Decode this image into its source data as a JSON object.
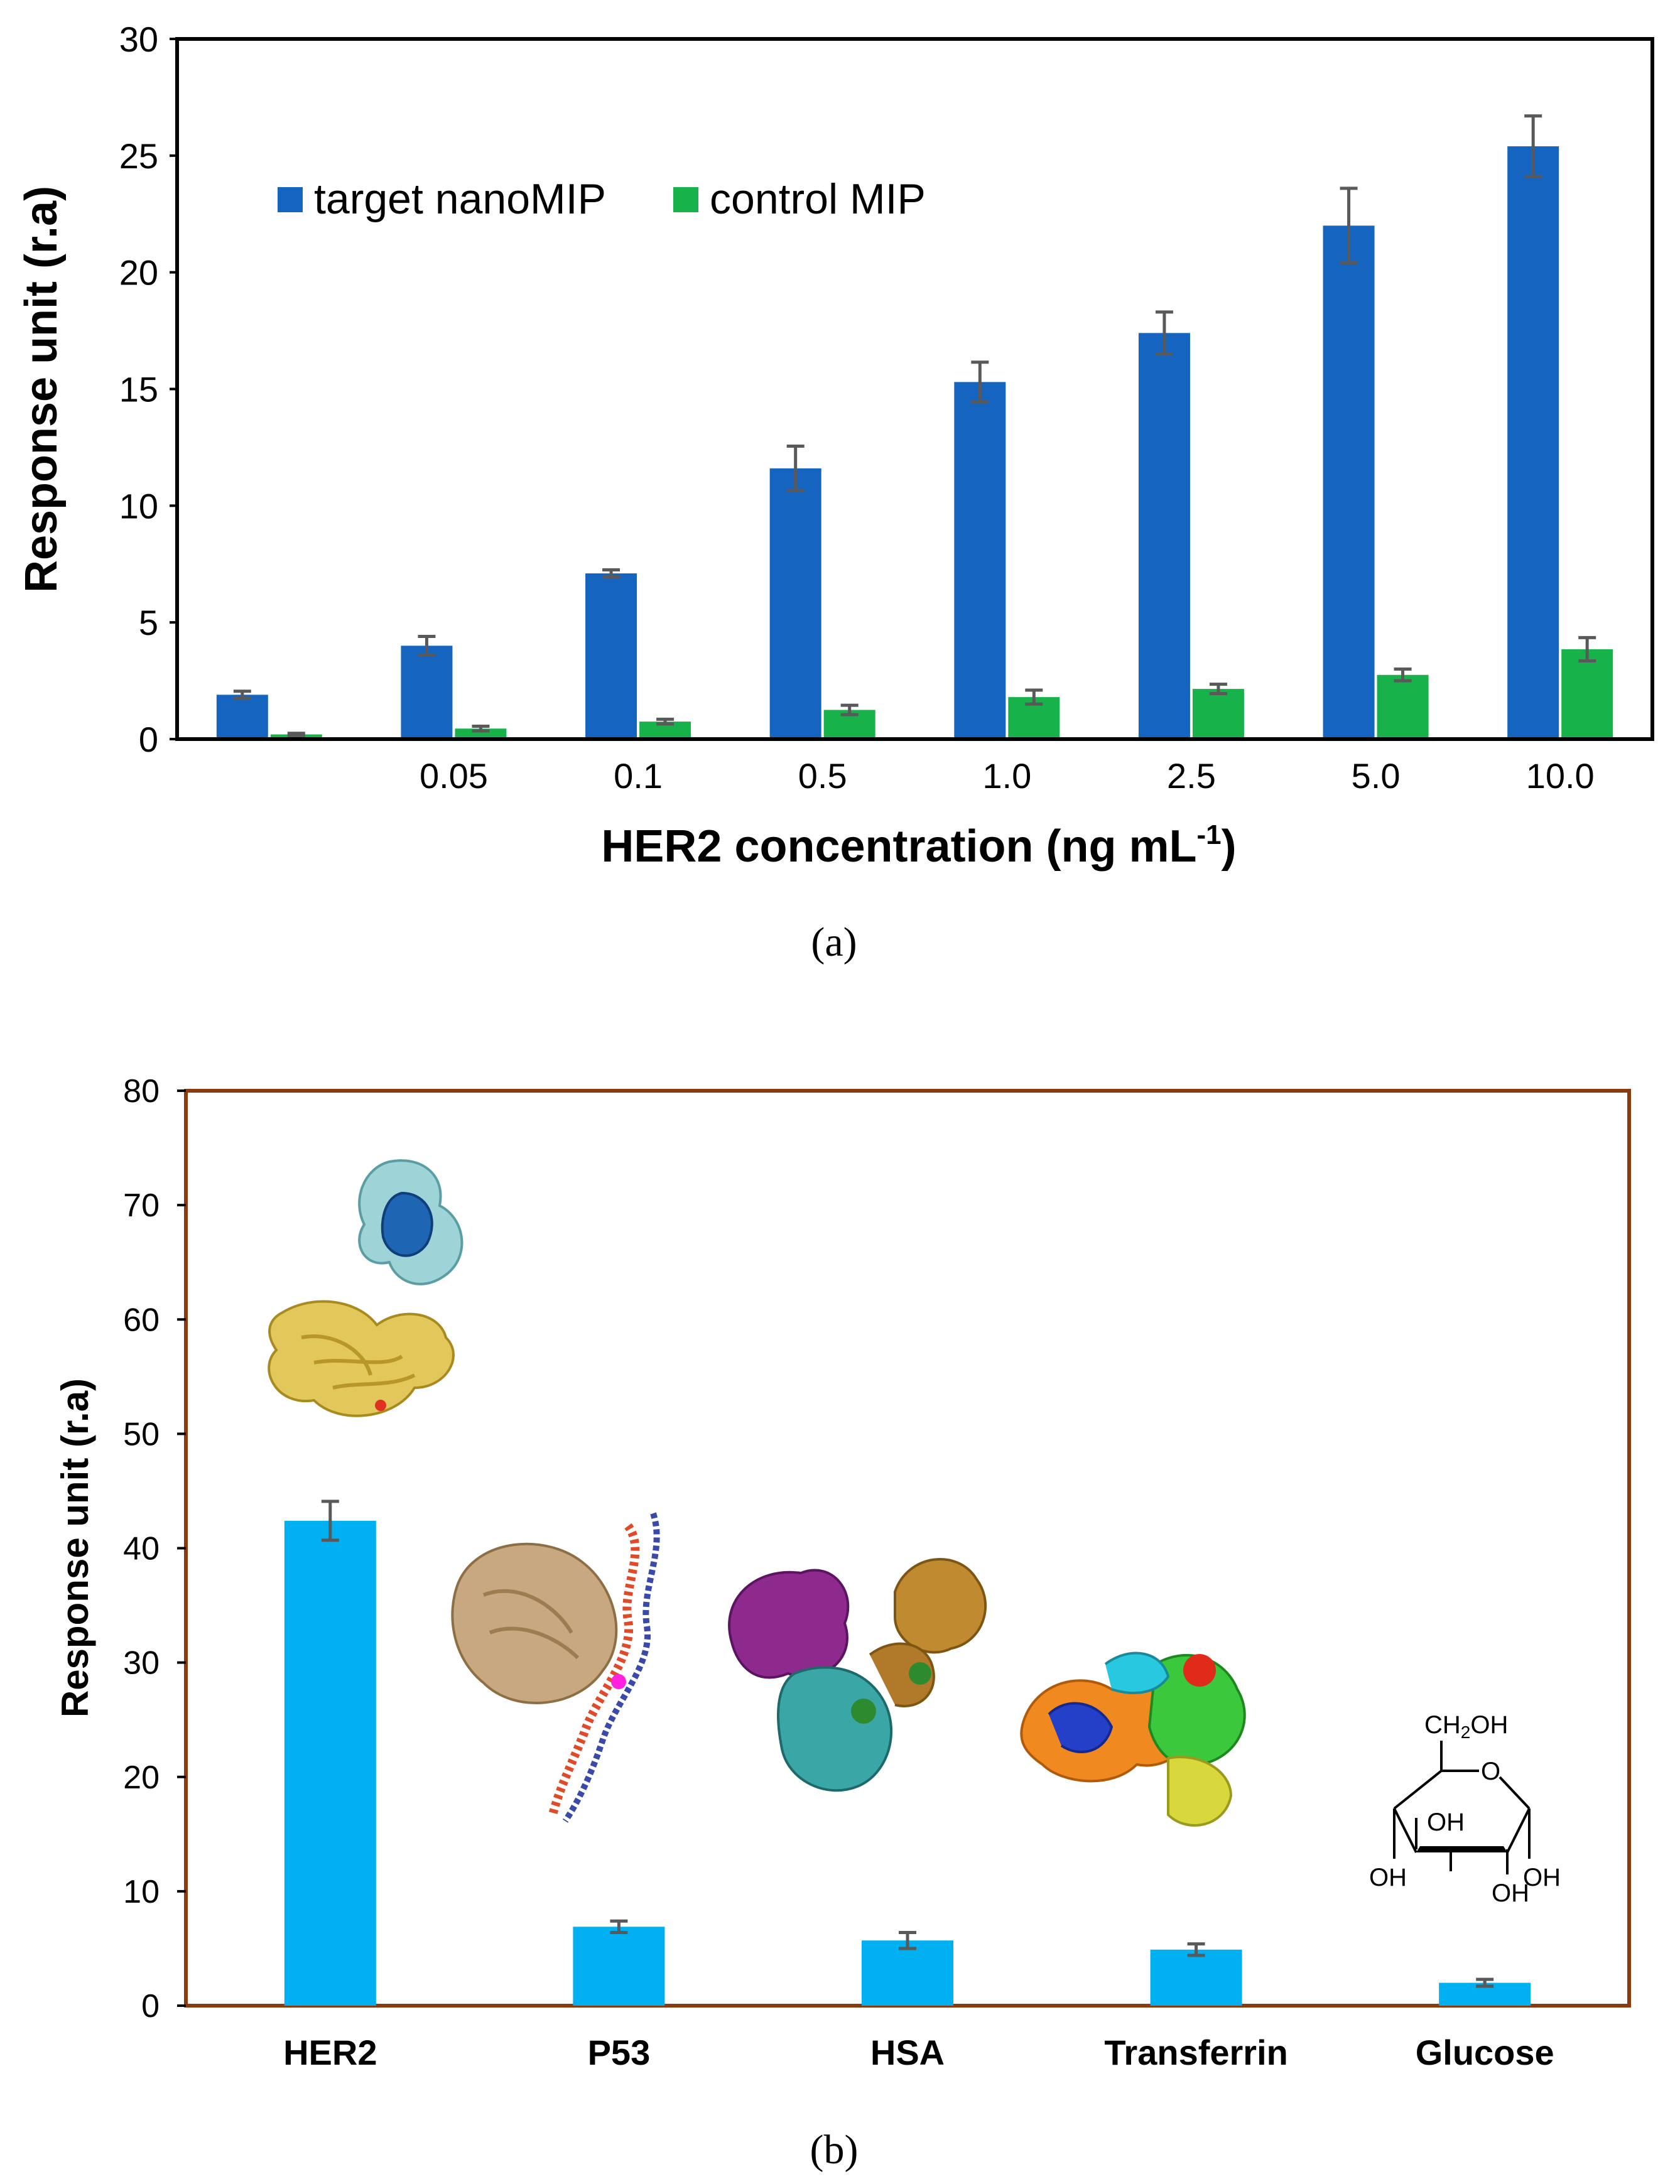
{
  "panels": [
    {
      "label": "(a)",
      "ylabel": "Response unit (r.a)",
      "xlabel_main": "HER2 concentration (ng mL",
      "xlabel_sup": "-1",
      "xlabel_close": ")",
      "legend": [
        "target nanoMIP",
        "control MIP"
      ],
      "colors": {
        "target": "#1565C0",
        "control": "#17B24A",
        "errbar": "#595959",
        "frame": "#000000"
      }
    },
    {
      "label": "(b)",
      "ylabel": "Response unit (r.a)",
      "colors": {
        "bar": "#00B0F0",
        "errbar": "#595959",
        "frame": "#8B3A0F"
      },
      "insets": [
        {
          "name": "her2-structure-image",
          "label_text": ""
        },
        {
          "name": "p53-structure-image",
          "label_text": ""
        },
        {
          "name": "hsa-structure-image",
          "label_text": ""
        },
        {
          "name": "transferrin-structure-image",
          "label_text": ""
        },
        {
          "name": "glucose-structure-image",
          "atoms": [
            "CH2OH",
            "O",
            "OH",
            "OH",
            "OH",
            "OH"
          ]
        }
      ]
    }
  ],
  "chart_data": [
    {
      "type": "bar",
      "categories": [
        "",
        "0.05",
        "0.1",
        "0.5",
        "1.0",
        "2.5",
        "5.0",
        "10.0"
      ],
      "ylim": [
        0,
        30
      ],
      "yticks": [
        0,
        5,
        10,
        15,
        20,
        25,
        30
      ],
      "xlabel": "HER2 concentration (ng mL-1)",
      "ylabel": "Response unit (r.a)",
      "legend_position": "top-left",
      "grid": false,
      "series": [
        {
          "name": "target nanoMIP",
          "values": [
            1.9,
            4.0,
            7.1,
            11.6,
            15.3,
            17.4,
            22.0,
            25.4
          ],
          "errors": [
            0.15,
            0.4,
            0.15,
            0.95,
            0.85,
            0.9,
            1.6,
            1.3
          ]
        },
        {
          "name": "control MIP",
          "values": [
            0.2,
            0.45,
            0.75,
            1.25,
            1.8,
            2.15,
            2.75,
            3.85
          ],
          "errors": [
            0.05,
            0.1,
            0.1,
            0.2,
            0.3,
            0.2,
            0.25,
            0.5
          ]
        }
      ]
    },
    {
      "type": "bar",
      "categories": [
        "HER2",
        "P53",
        "HSA",
        "Transferrin",
        "Glucose"
      ],
      "ylim": [
        0,
        80
      ],
      "yticks": [
        0,
        10,
        20,
        30,
        40,
        50,
        60,
        70,
        80
      ],
      "ylabel": "Response unit (r.a)",
      "grid": false,
      "values": [
        42.4,
        6.9,
        5.7,
        4.9,
        2.0
      ],
      "errors": [
        1.7,
        0.5,
        0.7,
        0.5,
        0.3
      ]
    }
  ]
}
